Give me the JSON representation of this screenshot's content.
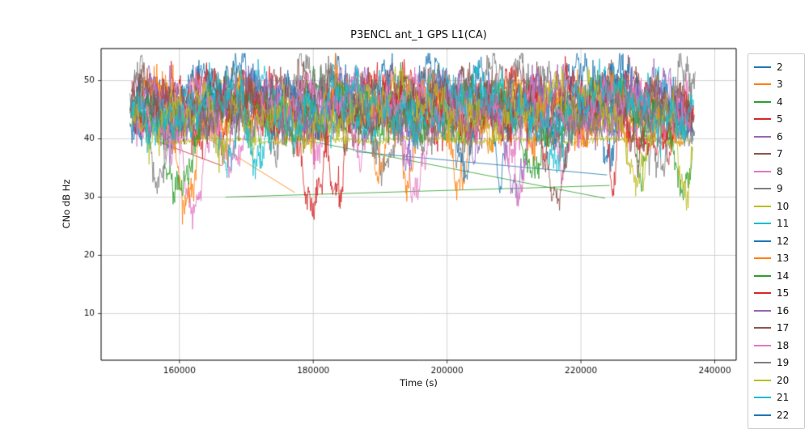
{
  "chart_data": {
    "type": "line",
    "title": "P3ENCL ant_1 GPS L1(CA)",
    "xlabel": "Time (s)",
    "ylabel": "CNo dB Hz",
    "xlim": [
      148300,
      243200
    ],
    "ylim": [
      2,
      55.5
    ],
    "x_ticks": [
      160000,
      180000,
      200000,
      220000,
      240000
    ],
    "y_ticks": [
      10,
      20,
      30,
      40,
      50
    ],
    "grid": true,
    "legend_position": "right-outside",
    "palette": [
      "#1f77b4",
      "#ff7f0e",
      "#2ca02c",
      "#d62728",
      "#9467bd",
      "#8c564b",
      "#e377c2",
      "#7f7f7f",
      "#bcbd22",
      "#17becf"
    ],
    "value_range_observed": [
      24,
      54.5
    ],
    "series": [
      {
        "name": "2",
        "color": "#1f77b4",
        "x_start": 152600,
        "x_end": 236900,
        "base": 46.3,
        "amp": 3.0,
        "noise": 1.3,
        "seed": 2,
        "has_data": true
      },
      {
        "name": "3",
        "color": "#ff7f0e",
        "x_start": 152800,
        "x_end": 236700,
        "base": 45.4,
        "amp": 2.6,
        "noise": 1.2,
        "seed": 3,
        "has_data": true
      },
      {
        "name": "4",
        "color": "#2ca02c",
        "x_start": 152600,
        "x_end": 236500,
        "base": 44.9,
        "amp": 2.8,
        "noise": 1.3,
        "seed": 4,
        "has_data": true
      },
      {
        "name": "5",
        "color": "#d62728",
        "x_start": 152900,
        "x_end": 236800,
        "base": 45.3,
        "amp": 3.0,
        "noise": 1.4,
        "seed": 5,
        "has_data": true
      },
      {
        "name": "6",
        "color": "#9467bd",
        "x_start": 153200,
        "x_end": 236600,
        "base": 46.0,
        "amp": 2.5,
        "noise": 1.2,
        "seed": 6,
        "has_data": true
      },
      {
        "name": "7",
        "color": "#8c564b",
        "x_start": 152700,
        "x_end": 237000,
        "base": 46.6,
        "amp": 2.8,
        "noise": 1.2,
        "seed": 7,
        "has_data": true
      },
      {
        "name": "8",
        "color": "#e377c2",
        "x_start": 153000,
        "x_end": 236400,
        "base": 45.1,
        "amp": 2.7,
        "noise": 1.3,
        "seed": 8,
        "has_data": true
      },
      {
        "name": "9",
        "color": "#7f7f7f",
        "x_start": 152600,
        "x_end": 237100,
        "base": 47.6,
        "amp": 3.6,
        "noise": 1.2,
        "seed": 9,
        "has_data": true
      },
      {
        "name": "10",
        "color": "#bcbd22",
        "x_start": 157500,
        "x_end": 236600,
        "base": 39.8,
        "amp": 0.25,
        "noise": 0.25,
        "seed": 10,
        "dips": false,
        "has_data": true
      },
      {
        "name": "11",
        "color": "#17becf",
        "x_start": 152800,
        "x_end": 236900,
        "base": 45.7,
        "amp": 2.7,
        "noise": 1.2,
        "seed": 11,
        "has_data": true
      },
      {
        "name": "12",
        "color": "#1f77b4",
        "x_start": 152600,
        "x_end": 236800,
        "base": 47.4,
        "amp": 3.4,
        "noise": 1.2,
        "seed": 12,
        "has_data": true
      },
      {
        "name": "13",
        "color": "#ff7f0e",
        "x_start": 153100,
        "x_end": 236500,
        "base": 45.0,
        "amp": 2.9,
        "noise": 1.3,
        "seed": 13,
        "has_data": true
      },
      {
        "name": "14",
        "color": "#2ca02c",
        "x_start": 152900,
        "x_end": 236700,
        "base": 44.6,
        "amp": 2.6,
        "noise": 1.3,
        "seed": 14,
        "has_data": true
      },
      {
        "name": "15",
        "color": "#d62728",
        "x_start": 152700,
        "x_end": 236900,
        "base": 45.6,
        "amp": 2.9,
        "noise": 1.3,
        "seed": 15,
        "has_data": true
      },
      {
        "name": "16",
        "color": "#9467bd",
        "x_start": 153300,
        "x_end": 236600,
        "base": 46.1,
        "amp": 2.6,
        "noise": 1.2,
        "seed": 16,
        "has_data": true
      },
      {
        "name": "17",
        "color": "#8c564b",
        "x_start": 152800,
        "x_end": 236800,
        "base": 46.4,
        "amp": 2.7,
        "noise": 1.2,
        "seed": 17,
        "has_data": true
      },
      {
        "name": "18",
        "color": "#e377c2",
        "x_start": 153000,
        "x_end": 236500,
        "base": 45.3,
        "amp": 2.6,
        "noise": 1.2,
        "seed": 18,
        "has_data": true
      },
      {
        "name": "19",
        "color": "#7f7f7f",
        "x_start": 152600,
        "x_end": 237000,
        "base": 43.2,
        "amp": 2.2,
        "noise": 1.1,
        "seed": 19,
        "has_data": true
      },
      {
        "name": "20",
        "color": "#bcbd22",
        "x_start": 152900,
        "x_end": 236700,
        "base": 44.9,
        "amp": 2.8,
        "noise": 1.3,
        "seed": 20,
        "has_data": true
      },
      {
        "name": "21",
        "color": "#17becf",
        "x_start": 152700,
        "x_end": 236600,
        "base": 45.6,
        "amp": 2.9,
        "noise": 1.3,
        "seed": 21,
        "has_data": true
      },
      {
        "name": "22",
        "color": "#1f77b4",
        "has_data": false
      }
    ],
    "bridges": [
      {
        "series": "4",
        "x1": 166900,
        "y1": 30.0,
        "x2": 224300,
        "y2": 32.0
      },
      {
        "series": "13",
        "x1": 163200,
        "y1": 40.8,
        "x2": 177200,
        "y2": 30.8
      },
      {
        "series": "12",
        "x1": 186300,
        "y1": 37.8,
        "x2": 223900,
        "y2": 33.8
      },
      {
        "series": "5",
        "x1": 156600,
        "y1": 39.6,
        "x2": 166300,
        "y2": 35.4
      },
      {
        "series": "14",
        "x1": 176800,
        "y1": 40.2,
        "x2": 223600,
        "y2": 29.8
      }
    ]
  }
}
